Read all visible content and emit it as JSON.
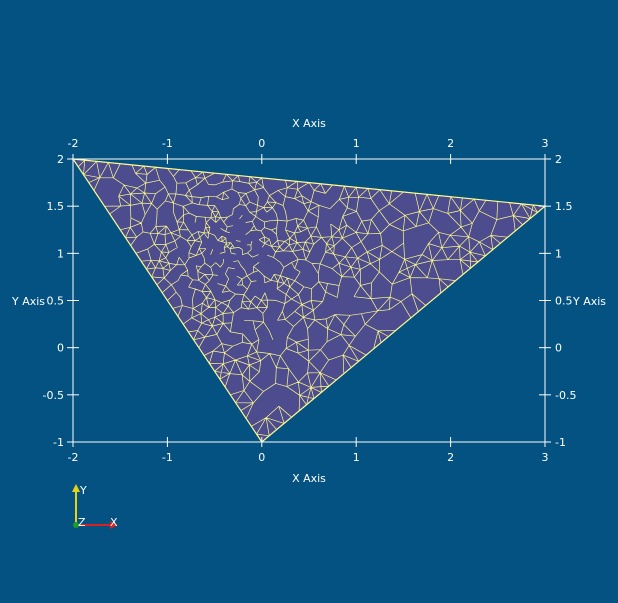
{
  "colors": {
    "background": "#045281",
    "mesh_fill": "#4d4c8e",
    "mesh_edge": "#fffb8d",
    "axis_line": "#ffffff",
    "orient_y": "#e8d214",
    "orient_x": "#d62222",
    "orient_z": "#1c9c2a"
  },
  "axes": {
    "x_title": "X Axis",
    "y_title": "Y Axis",
    "x_ticks": [
      "-2",
      "-1",
      "0",
      "1",
      "2",
      "3"
    ],
    "y_ticks": [
      "2",
      "1.5",
      "1",
      "0.5",
      "0",
      "-0.5",
      "-1"
    ]
  },
  "orientation_widget": {
    "x_label": "X",
    "y_label": "Y",
    "z_label": "Z"
  },
  "chart_data": {
    "type": "mesh",
    "domain": {
      "x_range": [
        -2,
        3
      ],
      "y_range": [
        -1,
        2
      ],
      "vertices": [
        [
          -2,
          2
        ],
        [
          3,
          1.5
        ],
        [
          0,
          -1
        ]
      ]
    },
    "refinement_center": [
      -0.3,
      1.1
    ],
    "element": "triangle"
  }
}
